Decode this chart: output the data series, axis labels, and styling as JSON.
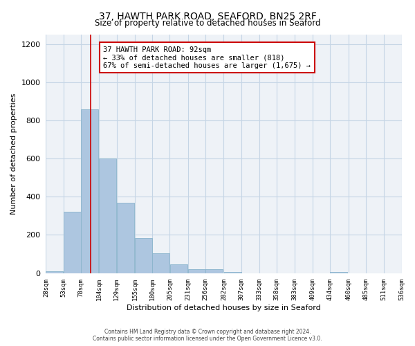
{
  "title": "37, HAWTH PARK ROAD, SEAFORD, BN25 2RF",
  "subtitle": "Size of property relative to detached houses in Seaford",
  "xlabel": "Distribution of detached houses by size in Seaford",
  "ylabel": "Number of detached properties",
  "bar_color": "#adc6e0",
  "bar_edge_color": "#8ab4cc",
  "vline_color": "#cc0000",
  "vline_x": 92,
  "annotation_title": "37 HAWTH PARK ROAD: 92sqm",
  "annotation_line1": "← 33% of detached houses are smaller (818)",
  "annotation_line2": "67% of semi-detached houses are larger (1,675) →",
  "annotation_box_color": "#ffffff",
  "annotation_box_edge": "#cc0000",
  "bin_edges": [
    28,
    53,
    78,
    104,
    129,
    155,
    180,
    205,
    231,
    256,
    282,
    307,
    333,
    358,
    383,
    409,
    434,
    460,
    485,
    511,
    536
  ],
  "bin_counts": [
    10,
    320,
    860,
    600,
    370,
    185,
    105,
    45,
    20,
    20,
    5,
    0,
    0,
    0,
    0,
    0,
    5,
    0,
    0,
    0,
    0
  ],
  "ylim": [
    0,
    1250
  ],
  "yticks": [
    0,
    200,
    400,
    600,
    800,
    1000,
    1200
  ],
  "xtick_labels": [
    "28sqm",
    "53sqm",
    "78sqm",
    "104sqm",
    "129sqm",
    "155sqm",
    "180sqm",
    "205sqm",
    "231sqm",
    "256sqm",
    "282sqm",
    "307sqm",
    "333sqm",
    "358sqm",
    "383sqm",
    "409sqm",
    "434sqm",
    "460sqm",
    "485sqm",
    "511sqm",
    "536sqm"
  ],
  "footer_line1": "Contains HM Land Registry data © Crown copyright and database right 2024.",
  "footer_line2": "Contains public sector information licensed under the Open Government Licence v3.0.",
  "bg_color": "#eef2f7",
  "grid_color": "#c5d5e5"
}
